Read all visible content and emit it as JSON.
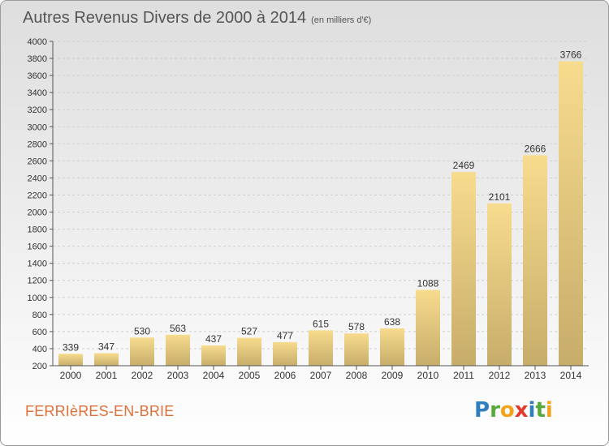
{
  "title": "Autres Revenus Divers de 2000 à 2014",
  "subtitle": "(en milliers d'€)",
  "commune": "FERRIèRES-EN-BRIE",
  "logo": {
    "letters": [
      {
        "ch": "P",
        "color": "#2f7fc0"
      },
      {
        "ch": "r",
        "color": "#58a83b"
      },
      {
        "ch": "o",
        "color": "#f2a21b"
      },
      {
        "ch": "x",
        "color": "#e23b2e"
      },
      {
        "ch": "i",
        "color": "#2f7fc0"
      },
      {
        "ch": "t",
        "color": "#58a83b"
      },
      {
        "ch": "i",
        "color": "#f2a21b"
      }
    ]
  },
  "chart_data": {
    "type": "bar",
    "categories": [
      "2000",
      "2001",
      "2002",
      "2003",
      "2004",
      "2005",
      "2006",
      "2007",
      "2008",
      "2009",
      "2010",
      "2011",
      "2012",
      "2013",
      "2014"
    ],
    "values": [
      339,
      347,
      530,
      563,
      437,
      527,
      477,
      615,
      578,
      638,
      1088,
      2469,
      2101,
      2666,
      3766
    ],
    "ylim": [
      200,
      4000
    ],
    "yticks": [
      200,
      400,
      600,
      800,
      1000,
      1200,
      1400,
      1600,
      1800,
      2000,
      2200,
      2400,
      2600,
      2800,
      3000,
      3200,
      3400,
      3600,
      3800,
      4000
    ],
    "grid": true,
    "colors": {
      "bar_light": "#f7dc8e",
      "bar_dark": "#c6ad6a",
      "grid": "#cfcfcf",
      "axis": "#555555"
    }
  }
}
